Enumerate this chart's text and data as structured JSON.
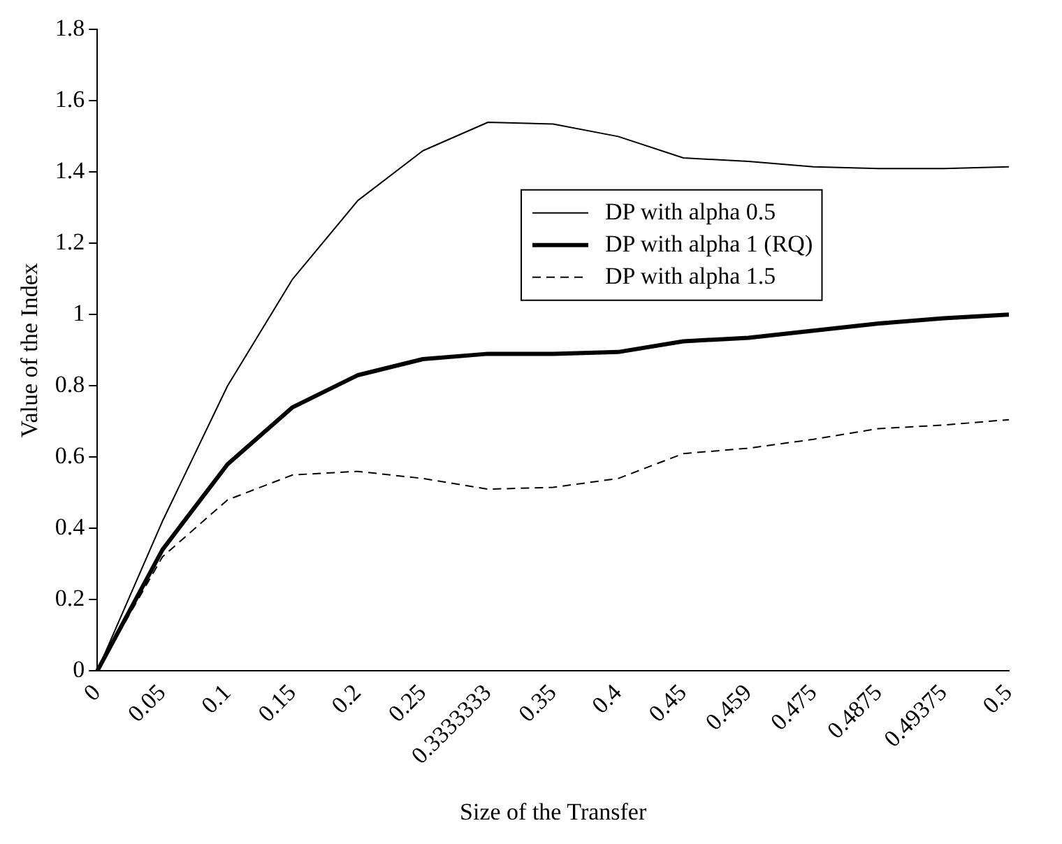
{
  "chart_data": {
    "type": "line",
    "xlabel": "Size of the Transfer",
    "ylabel": "Value of the Index",
    "categories": [
      "0",
      "0.05",
      "0.1",
      "0.15",
      "0.2",
      "0.25",
      "0.3333333",
      "0.35",
      "0.4",
      "0.45",
      "0.459",
      "0.475",
      "0.4875",
      "0.49375",
      "0.5"
    ],
    "series": [
      {
        "name": "DP with alpha 0.5",
        "color": "#000000",
        "line_style": "solid",
        "values": [
          0,
          0.42,
          0.8,
          1.1,
          1.32,
          1.46,
          1.54,
          1.535,
          1.5,
          1.44,
          1.43,
          1.415,
          1.41,
          1.41,
          1.415
        ]
      },
      {
        "name": "DP with alpha 1 (RQ)",
        "color": "#000000",
        "line_style": "solid",
        "values": [
          0,
          0.34,
          0.58,
          0.74,
          0.83,
          0.875,
          0.89,
          0.89,
          0.895,
          0.925,
          0.935,
          0.955,
          0.975,
          0.99,
          1.0
        ]
      },
      {
        "name": "DP with alpha 1.5",
        "color": "#000000",
        "line_style": "dashed",
        "values": [
          0,
          0.32,
          0.48,
          0.55,
          0.56,
          0.54,
          0.51,
          0.515,
          0.54,
          0.61,
          0.625,
          0.65,
          0.68,
          0.69,
          0.705
        ]
      }
    ],
    "ylim": [
      0,
      1.8
    ],
    "yticks": [
      0,
      0.2,
      0.4,
      0.6,
      0.8,
      1,
      1.2,
      1.4,
      1.6,
      1.8
    ],
    "grid": false,
    "legend": "top",
    "marker": "none"
  }
}
